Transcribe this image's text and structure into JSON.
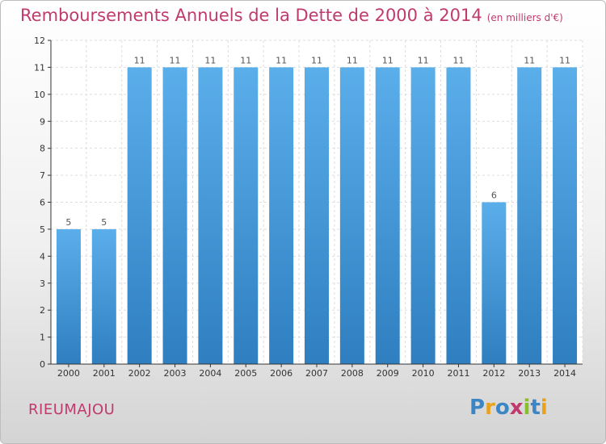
{
  "header": {
    "title": "Remboursements Annuels de la Dette de 2000 à 2014",
    "subtitle": "(en milliers d'€)"
  },
  "footer": {
    "commune": "RIEUMAJOU",
    "brand": "Proxiti"
  },
  "colors": {
    "title": "#c03a6e",
    "bar_light": "#5aaeea",
    "bar_dark": "#2f7fc0",
    "grid": "#dddddd",
    "axis": "#333333"
  },
  "chart_data": {
    "type": "bar",
    "title": "Remboursements Annuels de la Dette de 2000 à 2014",
    "xlabel": "",
    "ylabel": "",
    "categories": [
      "2000",
      "2001",
      "2002",
      "2003",
      "2004",
      "2005",
      "2006",
      "2007",
      "2008",
      "2009",
      "2010",
      "2011",
      "2012",
      "2013",
      "2014"
    ],
    "values": [
      5,
      5,
      11,
      11,
      11,
      11,
      11,
      11,
      11,
      11,
      11,
      11,
      6,
      11,
      11
    ],
    "data_labels": [
      "5",
      "5",
      "11",
      "11",
      "11",
      "11",
      "11",
      "11",
      "11",
      "11",
      "11",
      "11",
      "6",
      "11",
      "11"
    ],
    "yticks": [
      "0",
      "1",
      "2",
      "3",
      "4",
      "5",
      "6",
      "7",
      "8",
      "9",
      "10",
      "11",
      "12"
    ],
    "ylim": [
      0,
      12
    ],
    "grid": true,
    "legend": "none"
  }
}
